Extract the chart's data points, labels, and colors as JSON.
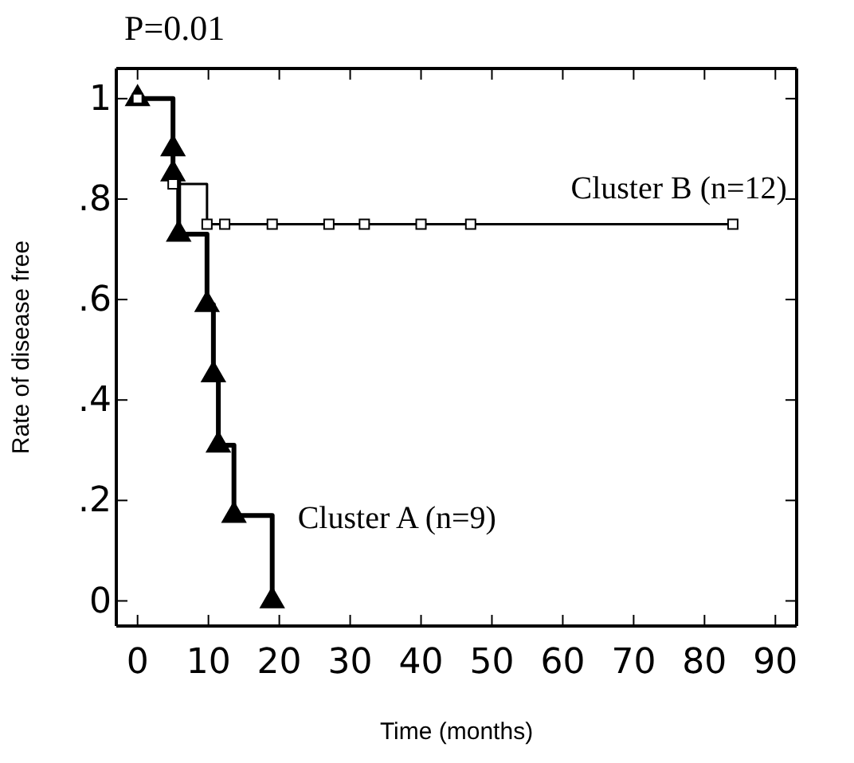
{
  "chart_data": {
    "type": "step",
    "xlabel": "Time (months)",
    "ylabel": "Rate of disease free",
    "annotations": [
      "P=0.01"
    ],
    "xlim": [
      -3,
      93
    ],
    "ylim": [
      -0.05,
      1.06
    ],
    "xticks": [
      0,
      10,
      20,
      30,
      40,
      50,
      60,
      70,
      80,
      90
    ],
    "yticks": [
      {
        "value": 0,
        "label": "0"
      },
      {
        "value": 0.2,
        "label": ".2"
      },
      {
        "value": 0.4,
        "label": ".4"
      },
      {
        "value": 0.6,
        "label": ".6"
      },
      {
        "value": 0.8,
        "label": ".8"
      },
      {
        "value": 1,
        "label": "1"
      }
    ],
    "grid": false,
    "line_style": "solid",
    "series": [
      {
        "name": "Cluster A (n=9)",
        "color": "#000000",
        "marker": "triangle",
        "x": [
          0,
          5,
          5,
          5.8,
          9.8,
          10.7,
          11.4,
          13.6,
          19
        ],
        "values": [
          1,
          0.9,
          0.85,
          0.73,
          0.59,
          0.45,
          0.31,
          0.17,
          0
        ]
      },
      {
        "name": "Cluster B (n=12)",
        "color": "#000000",
        "marker": "square",
        "x": [
          0,
          5,
          9.8,
          12.3,
          19,
          27,
          32,
          40,
          47,
          84
        ],
        "values": [
          1,
          0.83,
          0.75,
          0.75,
          0.75,
          0.75,
          0.75,
          0.75,
          0.75,
          0.75
        ]
      }
    ]
  }
}
